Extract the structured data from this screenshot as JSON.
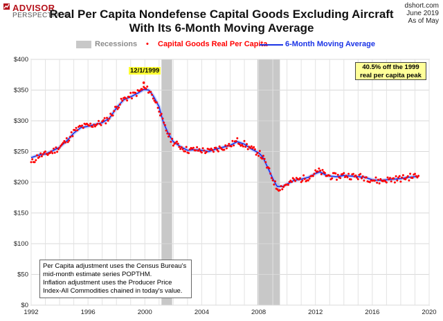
{
  "logo": {
    "line1": "ADVISOR",
    "line2": "PERSPECTIVES"
  },
  "source": {
    "site": "dshort.com",
    "date1": "June 2019",
    "date2": "As of May"
  },
  "title": {
    "line1": "Real Per Capita Nondefense Capital Goods Excluding Aircraft",
    "line2": "With Its 6-Month Moving Average"
  },
  "legend": {
    "recessions": "Recessions",
    "series1": "Capital Goods Real Per Capita",
    "series2": "6-Month Moving Average"
  },
  "callout": {
    "line1": "40.5% off the 1999",
    "line2": "real per capita peak"
  },
  "peak_label": "12/1/1999",
  "note": {
    "line1": "Per Capita adjustment uses the Census Bureau's",
    "line2": "mid-month estimate series POPTHM.",
    "line3": "Inflation adjustment uses the Producer Price",
    "line4": "Index-All Commodities chained in today's value."
  },
  "colors": {
    "points": "#ff0000",
    "moving_average": "#1a33e6",
    "recession": "#c8c8c8",
    "callout_bg": "#ffff99"
  },
  "chart_data": {
    "type": "line",
    "title": "Real Per Capita Nondefense Capital Goods Excluding Aircraft With Its 6-Month Moving Average",
    "xlim": [
      1992,
      2020
    ],
    "ylim": [
      0,
      400
    ],
    "x_ticks": [
      1992,
      1996,
      2000,
      2004,
      2008,
      2012,
      2016,
      2020
    ],
    "y_ticks": [
      0,
      50,
      100,
      150,
      200,
      250,
      300,
      350,
      400
    ],
    "y_tick_labels": [
      "$0",
      "$50",
      "$100",
      "$150",
      "$200",
      "$250",
      "$300",
      "$350",
      "$400"
    ],
    "grid": true,
    "legend_position": "top",
    "recessions": [
      [
        2001.17,
        2001.92
      ],
      [
        2007.92,
        2009.5
      ]
    ],
    "series": [
      {
        "name": "Capital Goods Real Per Capita",
        "style": "points",
        "anchors": [
          [
            1992.0,
            231
          ],
          [
            1992.5,
            243
          ],
          [
            1993.0,
            245
          ],
          [
            1993.5,
            250
          ],
          [
            1994.0,
            257
          ],
          [
            1994.5,
            268
          ],
          [
            1995.0,
            282
          ],
          [
            1995.5,
            290
          ],
          [
            1996.0,
            292
          ],
          [
            1996.5,
            294
          ],
          [
            1997.0,
            297
          ],
          [
            1997.5,
            305
          ],
          [
            1998.0,
            322
          ],
          [
            1998.5,
            335
          ],
          [
            1999.0,
            340
          ],
          [
            1999.5,
            346
          ],
          [
            1999.92,
            353
          ],
          [
            2000.3,
            350
          ],
          [
            2000.6,
            338
          ],
          [
            2001.0,
            320
          ],
          [
            2001.3,
            295
          ],
          [
            2001.7,
            275
          ],
          [
            2002.0,
            265
          ],
          [
            2002.5,
            258
          ],
          [
            2003.0,
            252
          ],
          [
            2003.5,
            253
          ],
          [
            2004.0,
            252
          ],
          [
            2004.5,
            250
          ],
          [
            2005.0,
            254
          ],
          [
            2005.5,
            257
          ],
          [
            2006.0,
            260
          ],
          [
            2006.5,
            267
          ],
          [
            2007.0,
            262
          ],
          [
            2007.5,
            254
          ],
          [
            2008.0,
            248
          ],
          [
            2008.3,
            240
          ],
          [
            2008.6,
            225
          ],
          [
            2009.0,
            205
          ],
          [
            2009.3,
            190
          ],
          [
            2009.7,
            193
          ],
          [
            2010.0,
            197
          ],
          [
            2010.5,
            203
          ],
          [
            2011.0,
            205
          ],
          [
            2011.5,
            208
          ],
          [
            2012.0,
            215
          ],
          [
            2012.3,
            218
          ],
          [
            2012.7,
            212
          ],
          [
            2013.0,
            210
          ],
          [
            2013.5,
            209
          ],
          [
            2014.0,
            212
          ],
          [
            2014.5,
            210
          ],
          [
            2015.0,
            209
          ],
          [
            2015.5,
            208
          ],
          [
            2016.0,
            204
          ],
          [
            2016.5,
            202
          ],
          [
            2017.0,
            204
          ],
          [
            2017.5,
            205
          ],
          [
            2018.0,
            206
          ],
          [
            2018.5,
            208
          ],
          [
            2019.0,
            210
          ],
          [
            2019.33,
            210
          ]
        ]
      },
      {
        "name": "6-Month Moving Average",
        "style": "line",
        "anchors": [
          [
            1992.0,
            240
          ],
          [
            1992.5,
            244
          ],
          [
            1993.0,
            246
          ],
          [
            1993.5,
            251
          ],
          [
            1994.0,
            257
          ],
          [
            1994.5,
            267
          ],
          [
            1995.0,
            280
          ],
          [
            1995.5,
            289
          ],
          [
            1996.0,
            291
          ],
          [
            1996.5,
            294
          ],
          [
            1997.0,
            297
          ],
          [
            1997.5,
            304
          ],
          [
            1998.0,
            321
          ],
          [
            1998.5,
            334
          ],
          [
            1999.0,
            339
          ],
          [
            1999.5,
            345
          ],
          [
            1999.92,
            351
          ],
          [
            2000.3,
            350
          ],
          [
            2000.6,
            340
          ],
          [
            2001.0,
            323
          ],
          [
            2001.3,
            297
          ],
          [
            2001.7,
            277
          ],
          [
            2002.0,
            266
          ],
          [
            2002.5,
            258
          ],
          [
            2003.0,
            252
          ],
          [
            2003.5,
            253
          ],
          [
            2004.0,
            252
          ],
          [
            2004.5,
            250
          ],
          [
            2005.0,
            254
          ],
          [
            2005.5,
            257
          ],
          [
            2006.0,
            260
          ],
          [
            2006.5,
            266
          ],
          [
            2007.0,
            262
          ],
          [
            2007.5,
            254
          ],
          [
            2008.0,
            248
          ],
          [
            2008.3,
            241
          ],
          [
            2008.6,
            226
          ],
          [
            2009.0,
            206
          ],
          [
            2009.3,
            193
          ],
          [
            2009.7,
            193
          ],
          [
            2010.0,
            197
          ],
          [
            2010.5,
            203
          ],
          [
            2011.0,
            205
          ],
          [
            2011.5,
            208
          ],
          [
            2012.0,
            214
          ],
          [
            2012.3,
            217
          ],
          [
            2012.7,
            212
          ],
          [
            2013.0,
            210
          ],
          [
            2013.5,
            209
          ],
          [
            2014.0,
            211
          ],
          [
            2014.5,
            210
          ],
          [
            2015.0,
            209
          ],
          [
            2015.5,
            208
          ],
          [
            2016.0,
            204
          ],
          [
            2016.5,
            203
          ],
          [
            2017.0,
            204
          ],
          [
            2017.5,
            205
          ],
          [
            2018.0,
            206
          ],
          [
            2018.5,
            208
          ],
          [
            2019.0,
            209
          ],
          [
            2019.33,
            209
          ]
        ]
      }
    ],
    "annotations": [
      "12/1/1999",
      "40.5% off the 1999 real per capita peak"
    ]
  }
}
